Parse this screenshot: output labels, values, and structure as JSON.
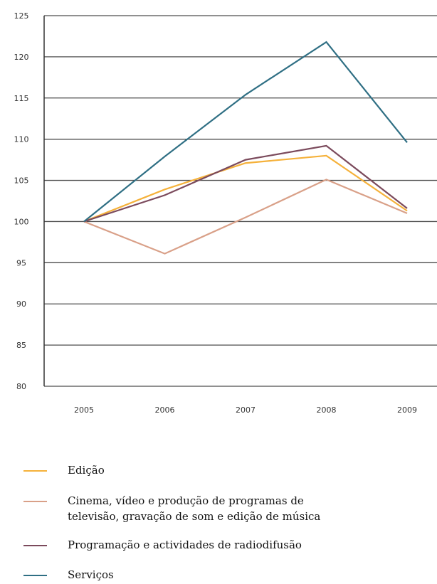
{
  "chart_data": {
    "type": "line",
    "categories": [
      "2005",
      "2006",
      "2007",
      "2008",
      "2009"
    ],
    "ylim": [
      80,
      125
    ],
    "yticks": [
      "80",
      "85",
      "90",
      "95",
      "100",
      "105",
      "110",
      "115",
      "120",
      "125"
    ],
    "grid": true,
    "legend_position": "bottom",
    "series": [
      {
        "name": "Edição",
        "name_lines": [
          "Edição"
        ],
        "color": "#f5b13a",
        "values": [
          100,
          103.9,
          107.1,
          108.0,
          101.3
        ]
      },
      {
        "name": "Cinema, vídeo e produção de programas de televisão, gravação de som e edição de música",
        "name_lines": [
          "Cinema, vídeo e produção de programas de",
          "televisão, gravação de som e edição de música"
        ],
        "color": "#d9a088",
        "values": [
          100,
          96.1,
          100.5,
          105.1,
          101.0
        ]
      },
      {
        "name": "Programação e actividades de radiodifusão",
        "name_lines": [
          "Programação e actividades de radiodifusão"
        ],
        "color": "#7b4a5c",
        "values": [
          100,
          103.2,
          107.5,
          109.2,
          101.6
        ]
      },
      {
        "name": "Serviços",
        "name_lines": [
          "Serviços"
        ],
        "color": "#2f6f84",
        "values": [
          100,
          107.9,
          115.4,
          121.8,
          109.6
        ]
      }
    ]
  }
}
